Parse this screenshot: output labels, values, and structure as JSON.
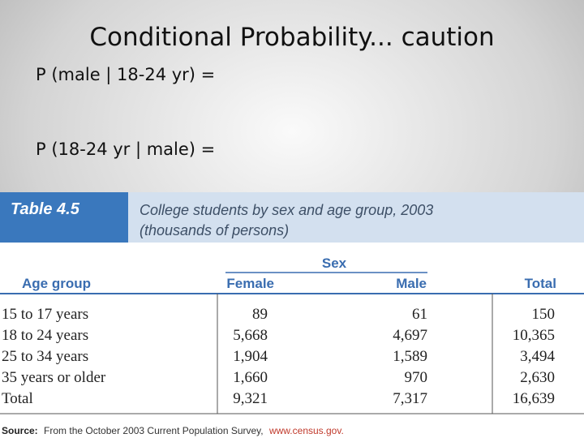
{
  "slide": {
    "title": "Conditional Probability... caution",
    "lines": [
      "P (male | 18-24 yr) =",
      "P (18-24 yr | male) ="
    ]
  },
  "table": {
    "label": "Table 4.5",
    "caption": [
      "College students by sex and age group, 2003",
      "(thousands of persons)"
    ],
    "group_header": "Sex",
    "headers": [
      "Age group",
      "Female",
      "Male",
      "Total"
    ],
    "rows": [
      [
        "15 to 17 years",
        "89",
        "61",
        "150"
      ],
      [
        "18 to 24 years",
        "5,668",
        "4,697",
        "10,365"
      ],
      [
        "25 to 34 years",
        "1,904",
        "1,589",
        "3,494"
      ],
      [
        "35 years or older",
        "1,660",
        "970",
        "2,630"
      ],
      [
        "Total",
        "9,321",
        "7,317",
        "16,639"
      ]
    ],
    "source": {
      "label": "Source:",
      "text": "From the October 2003 Current Population Survey,",
      "link": "www.census.gov."
    }
  }
}
